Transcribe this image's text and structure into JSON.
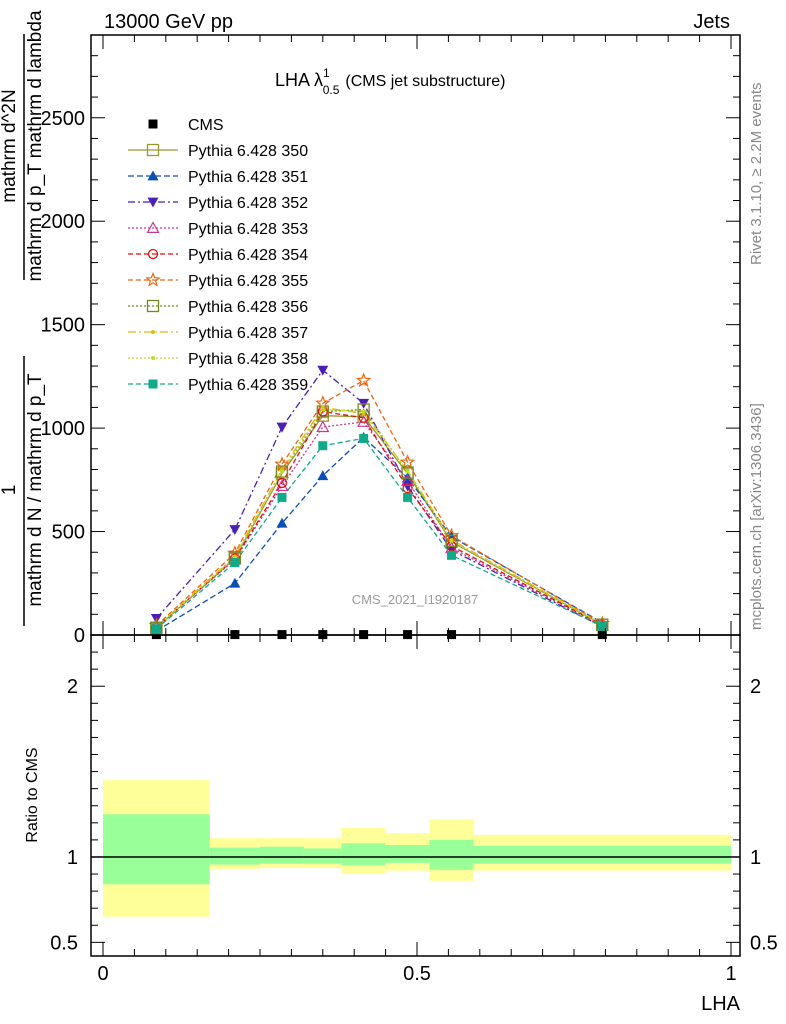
{
  "header": {
    "left": "13000 GeV pp",
    "right": "Jets"
  },
  "side": {
    "rivet": "Rivet 3.1.10, ≥ 2.2M events",
    "mcplots": "mcplots.cern.ch [arXiv:1306.3436]"
  },
  "watermark": "CMS_2021_I1920187",
  "colors": {
    "band_inner": "#99ff99",
    "band_outer": "#ffff99",
    "data": "#000000"
  },
  "chart_data": [
    {
      "type": "line",
      "panel": "main",
      "title_main": "LHA λ",
      "title_sup": "1",
      "title_sub": "0.5",
      "title_rest": "(CMS jet substructure)",
      "ylabel_num_top": "1",
      "ylabel_num_bottom": "mathrm d N / mathrm d p_T",
      "ylabel_den_top": "mathrm d^2N",
      "ylabel_den_bottom": "mathrm d p_T mathrm d lambda",
      "xlim": [
        0,
        1
      ],
      "ylim": [
        0,
        2900
      ],
      "yticks": [
        0,
        500,
        1000,
        1500,
        2000,
        2500
      ],
      "ytick_labels": [
        "0",
        "500",
        "1000",
        "1500",
        "2000",
        "2500"
      ],
      "x": [
        0.085,
        0.21,
        0.285,
        0.35,
        0.415,
        0.485,
        0.555,
        0.795
      ],
      "series": [
        {
          "name": "CMS",
          "color": "#000000",
          "marker": "square",
          "dash": "none",
          "values": [
            2,
            2,
            2,
            2,
            2,
            2,
            2,
            2
          ]
        },
        {
          "name": "Pythia 6.428 350",
          "color": "#999933",
          "marker": "square-open",
          "dash": "none",
          "values": [
            35,
            370,
            780,
            1060,
            1055,
            780,
            450,
            50
          ]
        },
        {
          "name": "Pythia 6.428 351",
          "color": "#0a4fb5",
          "marker": "triangle-up",
          "dash": "6,3",
          "values": [
            20,
            250,
            540,
            770,
            955,
            760,
            475,
            60
          ]
        },
        {
          "name": "Pythia 6.428 352",
          "color": "#4b1fb3",
          "marker": "triangle-down",
          "dash": "7,3,2,3",
          "values": [
            80,
            510,
            1005,
            1280,
            1120,
            720,
            410,
            40
          ]
        },
        {
          "name": "Pythia 6.428 353",
          "color": "#cc3399",
          "marker": "triangle-up-open",
          "dash": "2,2",
          "values": [
            38,
            365,
            720,
            1005,
            1030,
            745,
            420,
            45
          ]
        },
        {
          "name": "Pythia 6.428 354",
          "color": "#dd1111",
          "marker": "circle-open",
          "dash": "5,3",
          "values": [
            38,
            370,
            735,
            1080,
            1050,
            710,
            430,
            48
          ]
        },
        {
          "name": "Pythia 6.428 355",
          "color": "#ee6611",
          "marker": "star-open",
          "dash": "5,3",
          "values": [
            45,
            395,
            825,
            1120,
            1230,
            835,
            480,
            55
          ]
        },
        {
          "name": "Pythia 6.428 356",
          "color": "#778822",
          "marker": "square-open",
          "dash": "2,2",
          "values": [
            35,
            375,
            790,
            1080,
            1090,
            785,
            455,
            50
          ]
        },
        {
          "name": "Pythia 6.428 357",
          "color": "#ddbb11",
          "marker": "dot",
          "dash": "8,3,2,3",
          "values": [
            40,
            380,
            800,
            1100,
            1070,
            795,
            460,
            52
          ]
        },
        {
          "name": "Pythia 6.428 358",
          "color": "#bbdd22",
          "marker": "dot",
          "dash": "2,2",
          "values": [
            36,
            375,
            790,
            1090,
            1080,
            790,
            455,
            50
          ]
        },
        {
          "name": "Pythia 6.428 359",
          "color": "#11aa88",
          "marker": "square",
          "dash": "5,3",
          "values": [
            30,
            350,
            665,
            915,
            950,
            665,
            385,
            42
          ]
        }
      ]
    },
    {
      "type": "area",
      "panel": "ratio",
      "ylabel": "Ratio to CMS",
      "xlabel": "LHA",
      "xlim": [
        0,
        1
      ],
      "ylim": [
        0.42,
        2.3
      ],
      "yticks": [
        0.5,
        1,
        2
      ],
      "ytick_labels": [
        "0.5",
        "1",
        "2"
      ],
      "xticks": [
        0,
        0.5,
        1
      ],
      "xtick_labels": [
        "0",
        "0.5",
        "1"
      ],
      "reference": 1,
      "bins": [
        {
          "lo": 0.0,
          "hi": 0.17,
          "inner": [
            0.84,
            1.25
          ],
          "outer": [
            0.65,
            1.45
          ]
        },
        {
          "lo": 0.17,
          "hi": 0.25,
          "inner": [
            0.955,
            1.055
          ],
          "outer": [
            0.93,
            1.11
          ]
        },
        {
          "lo": 0.25,
          "hi": 0.32,
          "inner": [
            0.96,
            1.06
          ],
          "outer": [
            0.935,
            1.11
          ]
        },
        {
          "lo": 0.32,
          "hi": 0.38,
          "inner": [
            0.96,
            1.05
          ],
          "outer": [
            0.935,
            1.11
          ]
        },
        {
          "lo": 0.38,
          "hi": 0.45,
          "inner": [
            0.95,
            1.08
          ],
          "outer": [
            0.9,
            1.17
          ]
        },
        {
          "lo": 0.45,
          "hi": 0.52,
          "inner": [
            0.965,
            1.07
          ],
          "outer": [
            0.92,
            1.14
          ]
        },
        {
          "lo": 0.52,
          "hi": 0.59,
          "inner": [
            0.925,
            1.1
          ],
          "outer": [
            0.86,
            1.22
          ]
        },
        {
          "lo": 0.59,
          "hi": 1.0,
          "inner": [
            0.96,
            1.065
          ],
          "outer": [
            0.92,
            1.13
          ]
        }
      ]
    }
  ]
}
